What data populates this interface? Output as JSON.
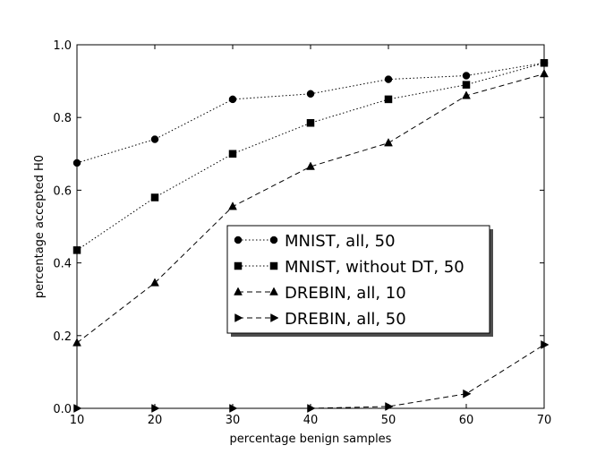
{
  "chart_data": {
    "type": "line",
    "xlabel": "percentage benign samples",
    "ylabel": "percentage accepted H0",
    "xlim": [
      10,
      70
    ],
    "ylim": [
      0.0,
      1.0
    ],
    "xticks": [
      "10",
      "20",
      "30",
      "40",
      "50",
      "60",
      "70"
    ],
    "yticks": [
      "0.0",
      "0.2",
      "0.4",
      "0.6",
      "0.8",
      "1.0"
    ],
    "grid": false,
    "legend_position": "center",
    "x": [
      10,
      20,
      30,
      40,
      50,
      60,
      70
    ],
    "series": [
      {
        "name": "MNIST, all, 50",
        "marker": "circle",
        "line_style": "dotted",
        "values": [
          0.675,
          0.74,
          0.85,
          0.865,
          0.905,
          0.915,
          0.95
        ]
      },
      {
        "name": "MNIST, without DT, 50",
        "marker": "square",
        "line_style": "dotted",
        "values": [
          0.435,
          0.58,
          0.7,
          0.785,
          0.85,
          0.89,
          0.95
        ]
      },
      {
        "name": "DREBIN, all, 10",
        "marker": "triangle-up",
        "line_style": "dashed",
        "values": [
          0.18,
          0.345,
          0.555,
          0.665,
          0.73,
          0.86,
          0.92
        ]
      },
      {
        "name": "DREBIN, all, 50",
        "marker": "triangle-right",
        "line_style": "dashed",
        "values": [
          0.0,
          0.0,
          0.0,
          0.0,
          0.005,
          0.04,
          0.175
        ]
      }
    ]
  }
}
